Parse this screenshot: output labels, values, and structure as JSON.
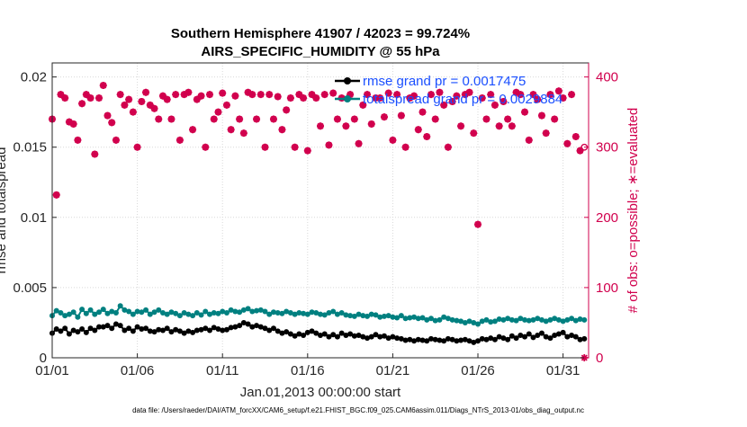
{
  "colors": {
    "rmse": "#000000",
    "totalspread": "#008080",
    "obs": "#d1004d",
    "legend_text": "#1a4fff",
    "grid": "#d9d9d9"
  },
  "chart_data": {
    "type": "line",
    "title": "Southern Hemisphere 41907 / 42023 = 99.724%",
    "subtitle": "AIRS_SPECIFIC_HUMIDITY @ 55 hPa",
    "xlabel": "Jan.01,2013 00:00:00 start",
    "ylabel_left": "rmse and totalspread",
    "ylabel_right": "# of obs: o=possible; ∗=evaluated",
    "footer": "data file: /Users/raeder/DAI/ATM_forcXX/CAM6_setup/f.e21.FHIST_BGC.f09_025.CAM6assim.011/Diags_NTrS_2013-01/obs_diag_output.nc",
    "xlim": [
      1,
      32.5
    ],
    "ylim_left": [
      0,
      0.021
    ],
    "ylim_right": [
      0,
      420
    ],
    "xticks": [
      1,
      6,
      11,
      16,
      21,
      26,
      31
    ],
    "xtick_labels": [
      "01/01",
      "01/06",
      "01/11",
      "01/16",
      "01/21",
      "01/26",
      "01/31"
    ],
    "yticks_left": [
      0,
      0.005,
      0.01,
      0.015,
      0.02
    ],
    "ytick_labels_left": [
      "0",
      "0.005",
      "0.01",
      "0.015",
      "0.02"
    ],
    "yticks_right": [
      0,
      100,
      200,
      300,
      400
    ],
    "ytick_labels_right": [
      "0",
      "100",
      "200",
      "300",
      "400"
    ],
    "legend": [
      "rmse grand pr = 0.0017475",
      "totalspread grand pr = 0.0029884"
    ],
    "legend_location": "top-right",
    "grid": true,
    "x": [
      1.0,
      1.25,
      1.5,
      1.75,
      2.0,
      2.25,
      2.5,
      2.75,
      3.0,
      3.25,
      3.5,
      3.75,
      4.0,
      4.25,
      4.5,
      4.75,
      5.0,
      5.25,
      5.5,
      5.75,
      6.0,
      6.25,
      6.5,
      6.75,
      7.0,
      7.25,
      7.5,
      7.75,
      8.0,
      8.25,
      8.5,
      8.75,
      9.0,
      9.25,
      9.5,
      9.75,
      10.0,
      10.25,
      10.5,
      10.75,
      11.0,
      11.25,
      11.5,
      11.75,
      12.0,
      12.25,
      12.5,
      12.75,
      13.0,
      13.25,
      13.5,
      13.75,
      14.0,
      14.25,
      14.5,
      14.75,
      15.0,
      15.25,
      15.5,
      15.75,
      16.0,
      16.25,
      16.5,
      16.75,
      17.0,
      17.25,
      17.5,
      17.75,
      18.0,
      18.25,
      18.5,
      18.75,
      19.0,
      19.25,
      19.5,
      19.75,
      20.0,
      20.25,
      20.5,
      20.75,
      21.0,
      21.25,
      21.5,
      21.75,
      22.0,
      22.25,
      22.5,
      22.75,
      23.0,
      23.25,
      23.5,
      23.75,
      24.0,
      24.25,
      24.5,
      24.75,
      25.0,
      25.25,
      25.5,
      25.75,
      26.0,
      26.25,
      26.5,
      26.75,
      27.0,
      27.25,
      27.5,
      27.75,
      28.0,
      28.25,
      28.5,
      28.75,
      29.0,
      29.25,
      29.5,
      29.75,
      30.0,
      30.25,
      30.5,
      30.75,
      31.0,
      31.25,
      31.5,
      31.75,
      32.0,
      32.25
    ],
    "series": [
      {
        "name": "rmse",
        "axis": "left",
        "marker": "filled-circle",
        "values": [
          0.00175,
          0.00205,
          0.0019,
          0.0021,
          0.0017,
          0.00195,
          0.00185,
          0.00205,
          0.0018,
          0.0021,
          0.00195,
          0.0022,
          0.0022,
          0.0023,
          0.0021,
          0.0024,
          0.0023,
          0.00195,
          0.0021,
          0.0019,
          0.0022,
          0.00205,
          0.0021,
          0.0019,
          0.00185,
          0.002,
          0.00195,
          0.0021,
          0.00185,
          0.002,
          0.0019,
          0.00175,
          0.0019,
          0.0018,
          0.00195,
          0.002,
          0.0021,
          0.00195,
          0.00215,
          0.00205,
          0.00195,
          0.002,
          0.00215,
          0.0022,
          0.0023,
          0.0025,
          0.0024,
          0.0022,
          0.0023,
          0.0022,
          0.0021,
          0.00195,
          0.0021,
          0.0019,
          0.00175,
          0.00185,
          0.0017,
          0.00155,
          0.0017,
          0.0016,
          0.0018,
          0.0019,
          0.00175,
          0.0016,
          0.0017,
          0.0015,
          0.00165,
          0.0015,
          0.00175,
          0.0016,
          0.0017,
          0.00155,
          0.0016,
          0.0015,
          0.0014,
          0.0015,
          0.00165,
          0.0015,
          0.00155,
          0.0014,
          0.0015,
          0.0014,
          0.00135,
          0.00125,
          0.0013,
          0.0012,
          0.0013,
          0.00125,
          0.0012,
          0.00135,
          0.0013,
          0.00125,
          0.0012,
          0.00135,
          0.0013,
          0.0012,
          0.00125,
          0.0013,
          0.0012,
          0.0011,
          0.0012,
          0.00135,
          0.0013,
          0.0014,
          0.0013,
          0.0015,
          0.0014,
          0.0013,
          0.00155,
          0.0014,
          0.0016,
          0.0015,
          0.0017,
          0.00145,
          0.0016,
          0.00175,
          0.0015,
          0.0014,
          0.0016,
          0.0017,
          0.0018,
          0.0015,
          0.0016,
          0.0015,
          0.0013,
          0.00135
        ]
      },
      {
        "name": "totalspread",
        "axis": "left",
        "marker": "filled-circle",
        "values": [
          0.003,
          0.00335,
          0.0032,
          0.003,
          0.0031,
          0.00325,
          0.0029,
          0.00345,
          0.00315,
          0.0034,
          0.0031,
          0.00325,
          0.00345,
          0.00315,
          0.0033,
          0.0032,
          0.0037,
          0.0034,
          0.0033,
          0.0031,
          0.0033,
          0.00325,
          0.0034,
          0.0031,
          0.00325,
          0.0034,
          0.0032,
          0.0031,
          0.00325,
          0.00315,
          0.003,
          0.0032,
          0.0031,
          0.003,
          0.0032,
          0.00305,
          0.0033,
          0.0031,
          0.0032,
          0.00315,
          0.0033,
          0.0032,
          0.0034,
          0.0033,
          0.00325,
          0.0034,
          0.0035,
          0.0033,
          0.00335,
          0.0034,
          0.0033,
          0.0031,
          0.00325,
          0.0032,
          0.00315,
          0.0033,
          0.0032,
          0.0031,
          0.0032,
          0.00315,
          0.0031,
          0.00325,
          0.0032,
          0.0031,
          0.00305,
          0.0032,
          0.0033,
          0.0031,
          0.0032,
          0.00305,
          0.003,
          0.00295,
          0.0031,
          0.003,
          0.00295,
          0.0031,
          0.00305,
          0.0029,
          0.00295,
          0.003,
          0.0029,
          0.00285,
          0.003,
          0.0028,
          0.00285,
          0.0029,
          0.0028,
          0.00285,
          0.0027,
          0.0028,
          0.00265,
          0.0027,
          0.0029,
          0.0028,
          0.0027,
          0.00265,
          0.0026,
          0.0025,
          0.0026,
          0.0025,
          0.0024,
          0.0026,
          0.0027,
          0.00255,
          0.0026,
          0.00275,
          0.0027,
          0.0028,
          0.0027,
          0.00265,
          0.0028,
          0.0027,
          0.00265,
          0.0027,
          0.0028,
          0.0027,
          0.0026,
          0.0027,
          0.0028,
          0.0027,
          0.0026,
          0.0027,
          0.0028,
          0.00265,
          0.00275,
          0.0027
        ]
      },
      {
        "name": "# of obs possible",
        "axis": "right",
        "marker": "open-circle",
        "values": [
          340,
          232,
          375,
          370,
          336,
          333,
          310,
          362,
          375,
          370,
          290,
          370,
          388,
          345,
          335,
          310,
          375,
          360,
          368,
          350,
          300,
          365,
          378,
          360,
          355,
          340,
          373,
          368,
          340,
          375,
          310,
          375,
          378,
          325,
          368,
          373,
          300,
          375,
          340,
          350,
          377,
          360,
          325,
          373,
          340,
          320,
          378,
          375,
          340,
          375,
          300,
          375,
          340,
          372,
          325,
          353,
          370,
          300,
          375,
          370,
          295,
          375,
          370,
          330,
          375,
          303,
          377,
          340,
          370,
          330,
          375,
          340,
          305,
          360,
          375,
          333,
          370,
          370,
          343,
          377,
          310,
          375,
          345,
          300,
          370,
          373,
          325,
          350,
          315,
          375,
          340,
          378,
          360,
          300,
          365,
          373,
          330,
          375,
          378,
          320,
          190,
          370,
          340,
          375,
          360,
          330,
          365,
          340,
          330,
          378,
          375,
          350,
          310,
          375,
          368,
          345,
          320,
          375,
          340,
          380,
          370,
          305,
          375,
          315,
          295,
          300
        ]
      },
      {
        "name": "# of obs evaluated",
        "axis": "right",
        "marker": "asterisk",
        "values": [
          340,
          232,
          375,
          370,
          336,
          333,
          310,
          362,
          375,
          370,
          290,
          370,
          388,
          345,
          335,
          310,
          375,
          360,
          368,
          350,
          300,
          365,
          378,
          360,
          355,
          340,
          373,
          368,
          340,
          375,
          310,
          375,
          378,
          325,
          368,
          373,
          300,
          375,
          340,
          350,
          377,
          360,
          325,
          373,
          340,
          320,
          378,
          375,
          340,
          375,
          300,
          375,
          340,
          372,
          325,
          353,
          370,
          300,
          375,
          370,
          295,
          375,
          370,
          330,
          375,
          303,
          377,
          340,
          370,
          330,
          375,
          340,
          305,
          360,
          375,
          333,
          370,
          370,
          343,
          377,
          310,
          375,
          345,
          300,
          370,
          373,
          325,
          350,
          315,
          375,
          340,
          378,
          360,
          300,
          365,
          373,
          330,
          375,
          378,
          320,
          190,
          370,
          340,
          375,
          360,
          330,
          365,
          340,
          330,
          378,
          375,
          350,
          310,
          375,
          368,
          345,
          320,
          375,
          340,
          380,
          370,
          305,
          375,
          315,
          295,
          0
        ]
      }
    ]
  }
}
